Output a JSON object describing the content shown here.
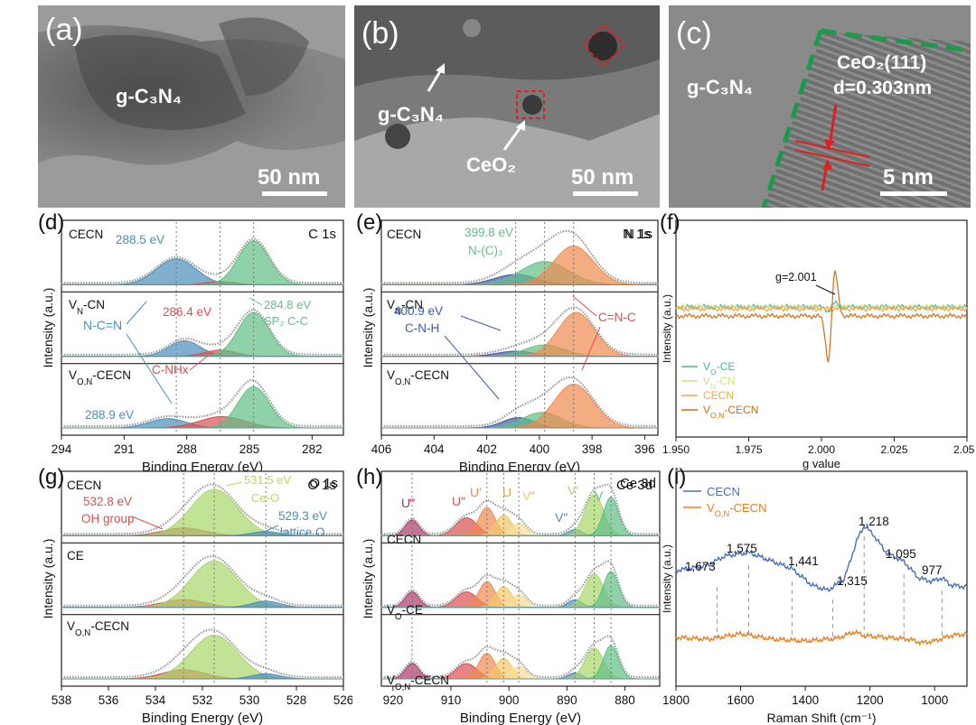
{
  "tem": {
    "a": {
      "label": "(a)",
      "material": "g-C₃N₄",
      "scale": "50 nm"
    },
    "b": {
      "label": "(b)",
      "material_1": "g-C₃N₄",
      "material_2": "CeO₂",
      "scale": "50 nm"
    },
    "c": {
      "label": "(c)",
      "material": "g-C₃N₄",
      "plane": "CeO₂(111)",
      "spacing": "d=0.303nm",
      "scale": "5 nm"
    }
  },
  "colors": {
    "green": "#5fbf86",
    "blue": "#4a8fb8",
    "red": "#d85050",
    "orange": "#f08a4f",
    "navy": "#3f58a8",
    "yellow": "#f2c86a",
    "lightgreen": "#a8d56a",
    "raman_blue": "#4a6fb5",
    "raman_orange": "#e67e22"
  },
  "chart_data": [
    {
      "id": "d",
      "type": "line",
      "panel_label": "(d)",
      "title": "C 1s",
      "xlabel": "Binding Energy (eV)",
      "ylabel": "Intensity (a.u.)",
      "xlim": [
        294,
        280.5
      ],
      "xticks": [
        294,
        291,
        288,
        285,
        282
      ],
      "subplots": [
        {
          "name": "CECN",
          "peaks": [
            {
              "center": 288.5,
              "amp": 0.5,
              "width": 0.95,
              "color": "#4a8fb8"
            },
            {
              "center": 286.4,
              "amp": 0.06,
              "width": 0.7,
              "color": "#d85050"
            },
            {
              "center": 284.8,
              "amp": 0.85,
              "width": 0.75,
              "color": "#5fbf86"
            }
          ]
        },
        {
          "name": "V_N-CN",
          "peaks": [
            {
              "center": 288.1,
              "amp": 0.3,
              "width": 0.75,
              "color": "#4a8fb8"
            },
            {
              "center": 286.4,
              "amp": 0.12,
              "width": 0.75,
              "color": "#d85050"
            },
            {
              "center": 284.8,
              "amp": 0.85,
              "width": 0.75,
              "color": "#5fbf86"
            }
          ]
        },
        {
          "name": "V_O,N-CECN",
          "peaks": [
            {
              "center": 288.9,
              "amp": 0.18,
              "width": 0.9,
              "color": "#4a8fb8"
            },
            {
              "center": 286.3,
              "amp": 0.22,
              "width": 1.1,
              "color": "#d85050"
            },
            {
              "center": 284.8,
              "amp": 0.8,
              "width": 0.75,
              "color": "#5fbf86"
            }
          ]
        }
      ],
      "annotations": [
        "288.5 eV",
        "N-C=N",
        "286.4 eV",
        "C-NHx",
        "284.8 eV",
        "SP₂ C-C",
        "288.9 eV"
      ],
      "sample_labels": {
        "top": "CECN",
        "mid": "V",
        "mid_sub": "N",
        "mid_tail": "-CN",
        "bot": "V",
        "bot_sub": "O,N",
        "bot_tail": "-CECN"
      }
    },
    {
      "id": "e",
      "type": "line",
      "panel_label": "(e)",
      "title": "N 1s",
      "xlabel": "Binding Energy (eV)",
      "ylabel": "Intensity (a.u.)",
      "xlim": [
        406,
        395.5
      ],
      "xticks": [
        406,
        404,
        402,
        400,
        398,
        396
      ],
      "subplots": [
        {
          "name": "CECN",
          "peaks": [
            {
              "center": 400.9,
              "amp": 0.2,
              "width": 0.8,
              "color": "#3f58a8"
            },
            {
              "center": 399.8,
              "amp": 0.45,
              "width": 0.9,
              "color": "#5fbf86"
            },
            {
              "center": 398.7,
              "amp": 0.75,
              "width": 0.75,
              "color": "#f08a4f"
            }
          ]
        },
        {
          "name": "V_N-CN",
          "peaks": [
            {
              "center": 400.9,
              "amp": 0.1,
              "width": 0.7,
              "color": "#3f58a8"
            },
            {
              "center": 399.8,
              "amp": 0.22,
              "width": 0.75,
              "color": "#5fbf86"
            },
            {
              "center": 398.6,
              "amp": 0.85,
              "width": 0.7,
              "color": "#f08a4f"
            }
          ]
        },
        {
          "name": "V_O,N-CECN",
          "peaks": [
            {
              "center": 400.8,
              "amp": 0.2,
              "width": 0.6,
              "color": "#3f58a8"
            },
            {
              "center": 399.9,
              "amp": 0.3,
              "width": 0.75,
              "color": "#5fbf86"
            },
            {
              "center": 398.7,
              "amp": 0.85,
              "width": 0.75,
              "color": "#f08a4f"
            }
          ]
        }
      ],
      "annotations": [
        "399.8 eV",
        "N-(C)₃",
        "400.9 eV",
        "C-N-H",
        "C=N-C"
      ]
    },
    {
      "id": "f",
      "type": "line",
      "panel_label": "(f)",
      "xlabel": "g value",
      "ylabel": "Intensity (a.u.)",
      "xlim": [
        1.95,
        2.05
      ],
      "xticks": [
        "1.950",
        "1.975",
        "2.000",
        "2.025",
        "2.050"
      ],
      "annotation": "g=2.001",
      "legend": [
        "V_O-CE",
        "V_N-CN",
        "CECN",
        "V_O,N-CECN"
      ],
      "legend_display": [
        {
          "main": "V",
          "sub": "O",
          "tail": "-CE"
        },
        {
          "main": "V",
          "sub": "N",
          "tail": "-CN"
        },
        {
          "main": "CECN",
          "sub": "",
          "tail": ""
        },
        {
          "main": "V",
          "sub": "O,N",
          "tail": "-CECN"
        }
      ],
      "series_colors": [
        "#3fb8a0",
        "#d8e07a",
        "#f5a54a",
        "#d07010"
      ]
    },
    {
      "id": "g",
      "type": "line",
      "panel_label": "(g)",
      "title": "O 1s",
      "xlabel": "Binding Energy (eV)",
      "ylabel": "Intensity (a.u.)",
      "xlim": [
        538,
        526
      ],
      "xticks": [
        538,
        536,
        534,
        532,
        530,
        528,
        526
      ],
      "subplots": [
        {
          "name": "CECN",
          "peaks": [
            {
              "center": 532.8,
              "amp": 0.15,
              "width": 0.9,
              "color": "#d85050"
            },
            {
              "center": 531.5,
              "amp": 0.9,
              "width": 1.0,
              "color": "#a8d56a"
            },
            {
              "center": 529.3,
              "amp": 0.08,
              "width": 0.6,
              "color": "#4a8fb8"
            }
          ]
        },
        {
          "name": "CE",
          "peaks": [
            {
              "center": 532.8,
              "amp": 0.15,
              "width": 0.9,
              "color": "#d85050"
            },
            {
              "center": 531.5,
              "amp": 0.9,
              "width": 1.0,
              "color": "#a8d56a"
            },
            {
              "center": 529.3,
              "amp": 0.12,
              "width": 0.6,
              "color": "#4a8fb8"
            }
          ]
        },
        {
          "name": "V_O,N-CECN",
          "peaks": [
            {
              "center": 532.8,
              "amp": 0.18,
              "width": 0.9,
              "color": "#d85050"
            },
            {
              "center": 531.5,
              "amp": 0.85,
              "width": 1.0,
              "color": "#a8d56a"
            },
            {
              "center": 529.3,
              "amp": 0.1,
              "width": 0.6,
              "color": "#4a8fb8"
            }
          ]
        }
      ],
      "annotations": [
        "532.8 eV",
        "OH group",
        "531.5 eV",
        "Ce-O",
        "529.3 eV",
        "lattice O"
      ]
    },
    {
      "id": "h",
      "type": "line",
      "panel_label": "(h)",
      "title": "Ce 3d",
      "xlabel": "Binding Energy (eV)",
      "ylabel": "Intensity (a.u.)",
      "xlim": [
        922,
        874
      ],
      "xticks": [
        920,
        910,
        900,
        890,
        880
      ],
      "subplots": [
        {
          "name": "CECN",
          "peaks": [
            {
              "center": 916.7,
              "amp": 0.3,
              "width": 1.2,
              "color": "#a83a6a"
            },
            {
              "center": 907.3,
              "amp": 0.35,
              "width": 1.8,
              "color": "#d85050"
            },
            {
              "center": 903.8,
              "amp": 0.55,
              "width": 1.4,
              "color": "#f08a4f"
            },
            {
              "center": 900.9,
              "amp": 0.4,
              "width": 1.4,
              "color": "#f2c86a"
            },
            {
              "center": 898.3,
              "amp": 0.25,
              "width": 1.3,
              "color": "#f7dd9a"
            },
            {
              "center": 888.6,
              "amp": 0.12,
              "width": 1.2,
              "color": "#4a8fb8"
            },
            {
              "center": 885.3,
              "amp": 0.8,
              "width": 1.6,
              "color": "#a8d56a"
            },
            {
              "center": 882.4,
              "amp": 0.75,
              "width": 1.3,
              "color": "#5fbf86"
            }
          ]
        },
        {
          "name": "V_O-CE",
          "peaks": [
            {
              "center": 916.7,
              "amp": 0.3,
              "width": 1.2,
              "color": "#a83a6a"
            },
            {
              "center": 907.3,
              "amp": 0.3,
              "width": 1.8,
              "color": "#d85050"
            },
            {
              "center": 903.8,
              "amp": 0.5,
              "width": 1.4,
              "color": "#f08a4f"
            },
            {
              "center": 900.9,
              "amp": 0.4,
              "width": 1.4,
              "color": "#f2c86a"
            },
            {
              "center": 898.3,
              "amp": 0.25,
              "width": 1.3,
              "color": "#f7dd9a"
            },
            {
              "center": 888.6,
              "amp": 0.15,
              "width": 1.2,
              "color": "#4a8fb8"
            },
            {
              "center": 885.3,
              "amp": 0.65,
              "width": 1.6,
              "color": "#a8d56a"
            },
            {
              "center": 882.4,
              "amp": 0.7,
              "width": 1.3,
              "color": "#5fbf86"
            }
          ]
        },
        {
          "name": "V_O,N-CECN",
          "peaks": [
            {
              "center": 916.7,
              "amp": 0.3,
              "width": 1.2,
              "color": "#a83a6a"
            },
            {
              "center": 907.3,
              "amp": 0.3,
              "width": 1.8,
              "color": "#d85050"
            },
            {
              "center": 903.8,
              "amp": 0.5,
              "width": 1.4,
              "color": "#f08a4f"
            },
            {
              "center": 900.9,
              "amp": 0.4,
              "width": 1.4,
              "color": "#f2c86a"
            },
            {
              "center": 898.3,
              "amp": 0.25,
              "width": 1.3,
              "color": "#f7dd9a"
            },
            {
              "center": 888.6,
              "amp": 0.12,
              "width": 1.2,
              "color": "#4a8fb8"
            },
            {
              "center": 885.3,
              "amp": 0.6,
              "width": 1.6,
              "color": "#a8d56a"
            },
            {
              "center": 882.4,
              "amp": 0.65,
              "width": 1.3,
              "color": "#5fbf86"
            }
          ]
        }
      ],
      "annotations": [
        "U‴",
        "U″",
        "U′",
        "U",
        "V‴",
        "V′",
        "V″",
        "V"
      ]
    },
    {
      "id": "i",
      "type": "line",
      "panel_label": "(i)",
      "xlabel": "Raman Shift (cm⁻¹)",
      "ylabel": "Intensity (a.u.)",
      "xlim": [
        1800,
        900
      ],
      "xticks": [
        1800,
        1600,
        1400,
        1200,
        1000
      ],
      "legend": [
        "CECN",
        "V_O,N-CECN"
      ],
      "peak_labels": [
        1673,
        1575,
        1441,
        1315,
        1218,
        1095,
        977
      ],
      "peak_label_text": [
        "1,673",
        "1,575",
        "1,441",
        "1,315",
        "1,218",
        "1,095",
        "977"
      ]
    }
  ]
}
